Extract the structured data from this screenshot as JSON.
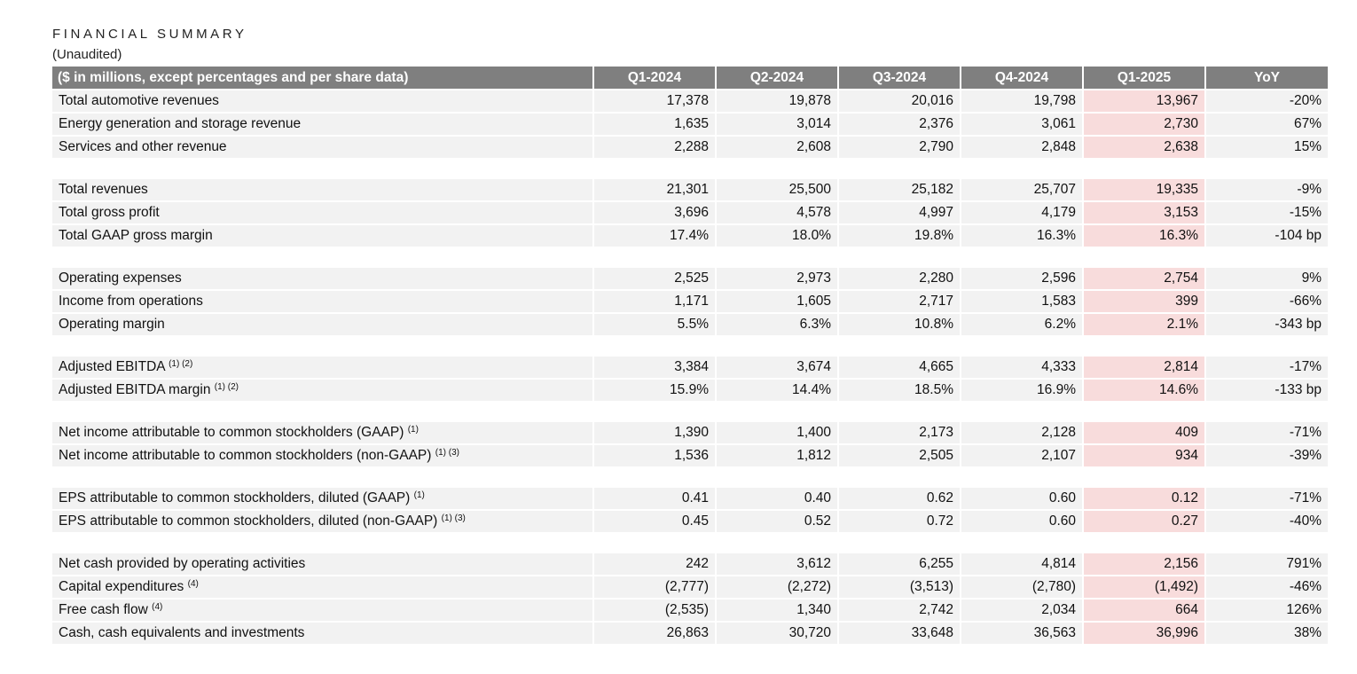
{
  "title": "FINANCIAL SUMMARY",
  "subtitle": "(Unaudited)",
  "table": {
    "headers": [
      "($ in millions, except percentages and per share data)",
      "Q1-2024",
      "Q2-2024",
      "Q3-2024",
      "Q4-2024",
      "Q1-2025",
      "YoY"
    ],
    "highlight_color": "#f8dcdc",
    "header_color": "#7f7f7f",
    "row_color": "#f2f2f2",
    "groups": [
      [
        {
          "label": "Total automotive revenues",
          "note": "",
          "values": [
            "17,378",
            "19,878",
            "20,016",
            "19,798",
            "13,967",
            "-20%"
          ]
        },
        {
          "label": "Energy generation and storage revenue",
          "note": "",
          "values": [
            "1,635",
            "3,014",
            "2,376",
            "3,061",
            "2,730",
            "67%"
          ]
        },
        {
          "label": "Services and other revenue",
          "note": "",
          "values": [
            "2,288",
            "2,608",
            "2,790",
            "2,848",
            "2,638",
            "15%"
          ]
        }
      ],
      [
        {
          "label": "Total revenues",
          "note": "",
          "values": [
            "21,301",
            "25,500",
            "25,182",
            "25,707",
            "19,335",
            "-9%"
          ]
        },
        {
          "label": "Total gross profit",
          "note": "",
          "values": [
            "3,696",
            "4,578",
            "4,997",
            "4,179",
            "3,153",
            "-15%"
          ]
        },
        {
          "label": "Total GAAP gross margin",
          "note": "",
          "values": [
            "17.4%",
            "18.0%",
            "19.8%",
            "16.3%",
            "16.3%",
            "-104 bp"
          ]
        }
      ],
      [
        {
          "label": "Operating expenses",
          "note": "",
          "values": [
            "2,525",
            "2,973",
            "2,280",
            "2,596",
            "2,754",
            "9%"
          ]
        },
        {
          "label": "Income from operations",
          "note": "",
          "values": [
            "1,171",
            "1,605",
            "2,717",
            "1,583",
            "399",
            "-66%"
          ]
        },
        {
          "label": "Operating margin",
          "note": "",
          "values": [
            "5.5%",
            "6.3%",
            "10.8%",
            "6.2%",
            "2.1%",
            "-343 bp"
          ]
        }
      ],
      [
        {
          "label": "Adjusted EBITDA",
          "note": "(1) (2)",
          "values": [
            "3,384",
            "3,674",
            "4,665",
            "4,333",
            "2,814",
            "-17%"
          ]
        },
        {
          "label": "Adjusted EBITDA margin",
          "note": "(1) (2)",
          "values": [
            "15.9%",
            "14.4%",
            "18.5%",
            "16.9%",
            "14.6%",
            "-133 bp"
          ]
        }
      ],
      [
        {
          "label": "Net income attributable to common stockholders (GAAP)",
          "note": "(1)",
          "values": [
            "1,390",
            "1,400",
            "2,173",
            "2,128",
            "409",
            "-71%"
          ]
        },
        {
          "label": "Net income attributable to common stockholders (non-GAAP)",
          "note": "(1) (3)",
          "values": [
            "1,536",
            "1,812",
            "2,505",
            "2,107",
            "934",
            "-39%"
          ]
        }
      ],
      [
        {
          "label": "EPS attributable to common stockholders, diluted (GAAP)",
          "note": "(1)",
          "values": [
            "0.41",
            "0.40",
            "0.62",
            "0.60",
            "0.12",
            "-71%"
          ]
        },
        {
          "label": "EPS attributable to common stockholders, diluted (non-GAAP)",
          "note": "(1) (3)",
          "values": [
            "0.45",
            "0.52",
            "0.72",
            "0.60",
            "0.27",
            "-40%"
          ]
        }
      ],
      [
        {
          "label": "Net cash provided by operating activities",
          "note": "",
          "values": [
            "242",
            "3,612",
            "6,255",
            "4,814",
            "2,156",
            "791%"
          ]
        },
        {
          "label": "Capital expenditures",
          "note": "(4)",
          "values": [
            "(2,777)",
            "(2,272)",
            "(3,513)",
            "(2,780)",
            "(1,492)",
            "-46%"
          ]
        },
        {
          "label": "Free cash flow",
          "note": "(4)",
          "values": [
            "(2,535)",
            "1,340",
            "2,742",
            "2,034",
            "664",
            "126%"
          ]
        },
        {
          "label": "Cash, cash equivalents and investments",
          "note": "",
          "values": [
            "26,863",
            "30,720",
            "33,648",
            "36,563",
            "36,996",
            "38%"
          ]
        }
      ]
    ]
  }
}
